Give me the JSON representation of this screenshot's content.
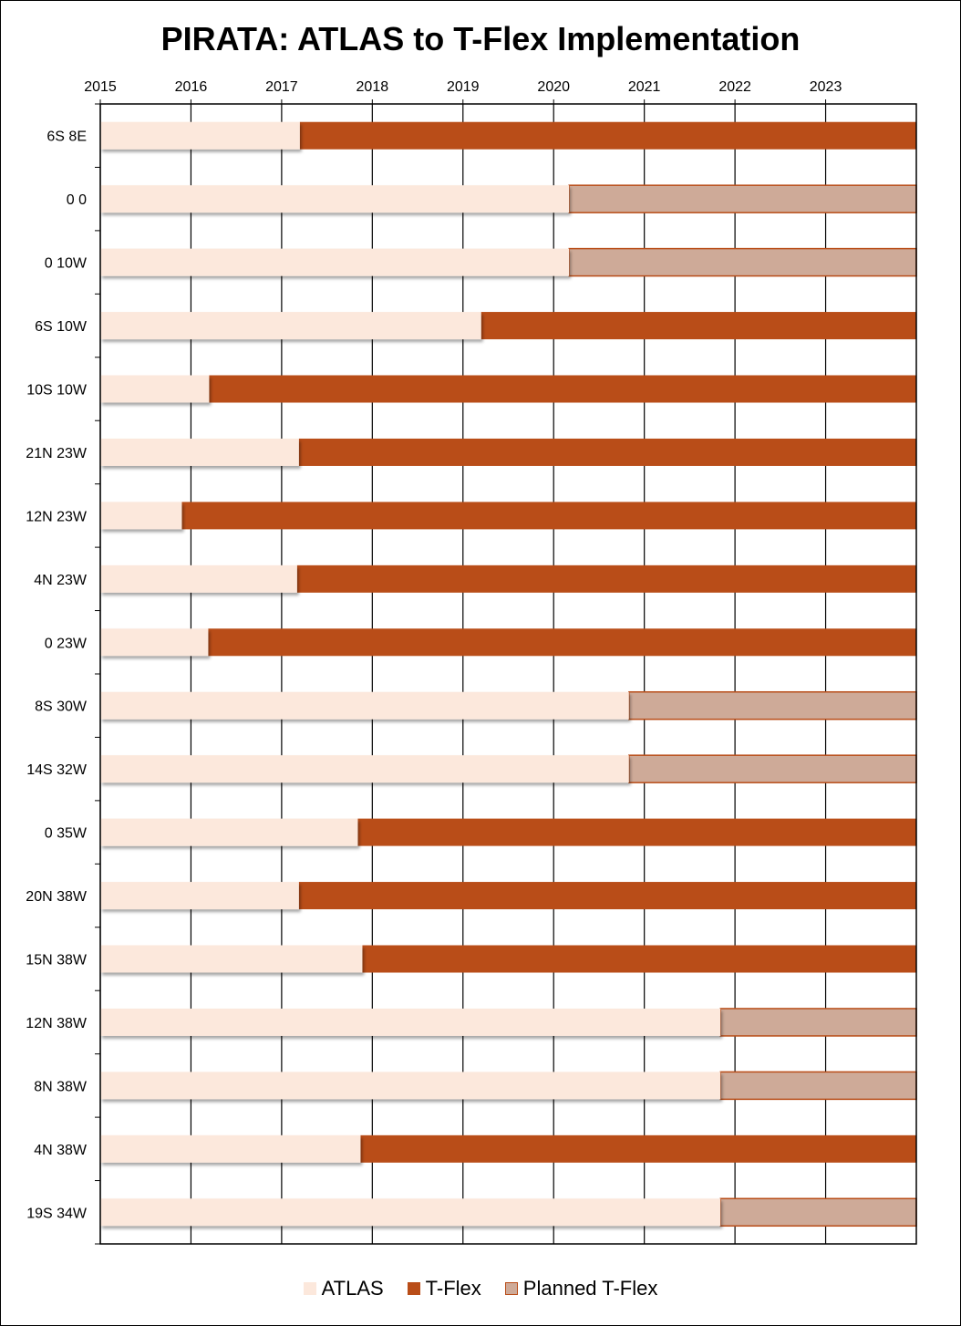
{
  "chart_data": {
    "type": "bar",
    "subtype": "horizontal-stacked-timeline",
    "title": "PIRATA: ATLAS to T-Flex Implementation",
    "xlabel": "",
    "ylabel": "",
    "x_axis_position": "top",
    "xlim": [
      2015,
      2024
    ],
    "x_ticks": [
      "2015",
      "2016",
      "2017",
      "2018",
      "2019",
      "2020",
      "2021",
      "2022",
      "2023"
    ],
    "grid": "vertical",
    "legend_position": "bottom",
    "series": [
      {
        "name": "ATLAS",
        "color": "#fce8dc"
      },
      {
        "name": "T-Flex",
        "color": "#b94d18"
      },
      {
        "name": "Planned T-Flex",
        "color": "#ceaa98",
        "border": "#b94d18"
      }
    ],
    "categories": [
      "6S 8E",
      "0 0",
      "0 10W",
      "6S 10W",
      "10S 10W",
      "21N 23W",
      "12N 23W",
      "4N 23W",
      "0 23W",
      "8S 30W",
      "14S 32W",
      "0 35W",
      "20N 38W",
      "15N 38W",
      "12N 38W",
      "8N 38W",
      "4N 38W",
      "19S 34W"
    ],
    "transition_year": [
      2017.2,
      2020.17,
      2020.17,
      2019.2,
      2016.2,
      2017.19,
      2015.9,
      2017.17,
      2016.19,
      2020.83,
      2020.83,
      2017.84,
      2017.19,
      2017.89,
      2021.84,
      2021.84,
      2017.87,
      2021.84
    ],
    "end_year": 2024,
    "after_transition": [
      "T-Flex",
      "Planned T-Flex",
      "Planned T-Flex",
      "T-Flex",
      "T-Flex",
      "T-Flex",
      "T-Flex",
      "T-Flex",
      "T-Flex",
      "Planned T-Flex",
      "Planned T-Flex",
      "T-Flex",
      "T-Flex",
      "T-Flex",
      "Planned T-Flex",
      "Planned T-Flex",
      "T-Flex",
      "Planned T-Flex"
    ]
  },
  "legend": {
    "atlas_label": "ATLAS",
    "tflex_label": "T-Flex",
    "planned_label": "Planned T-Flex"
  }
}
